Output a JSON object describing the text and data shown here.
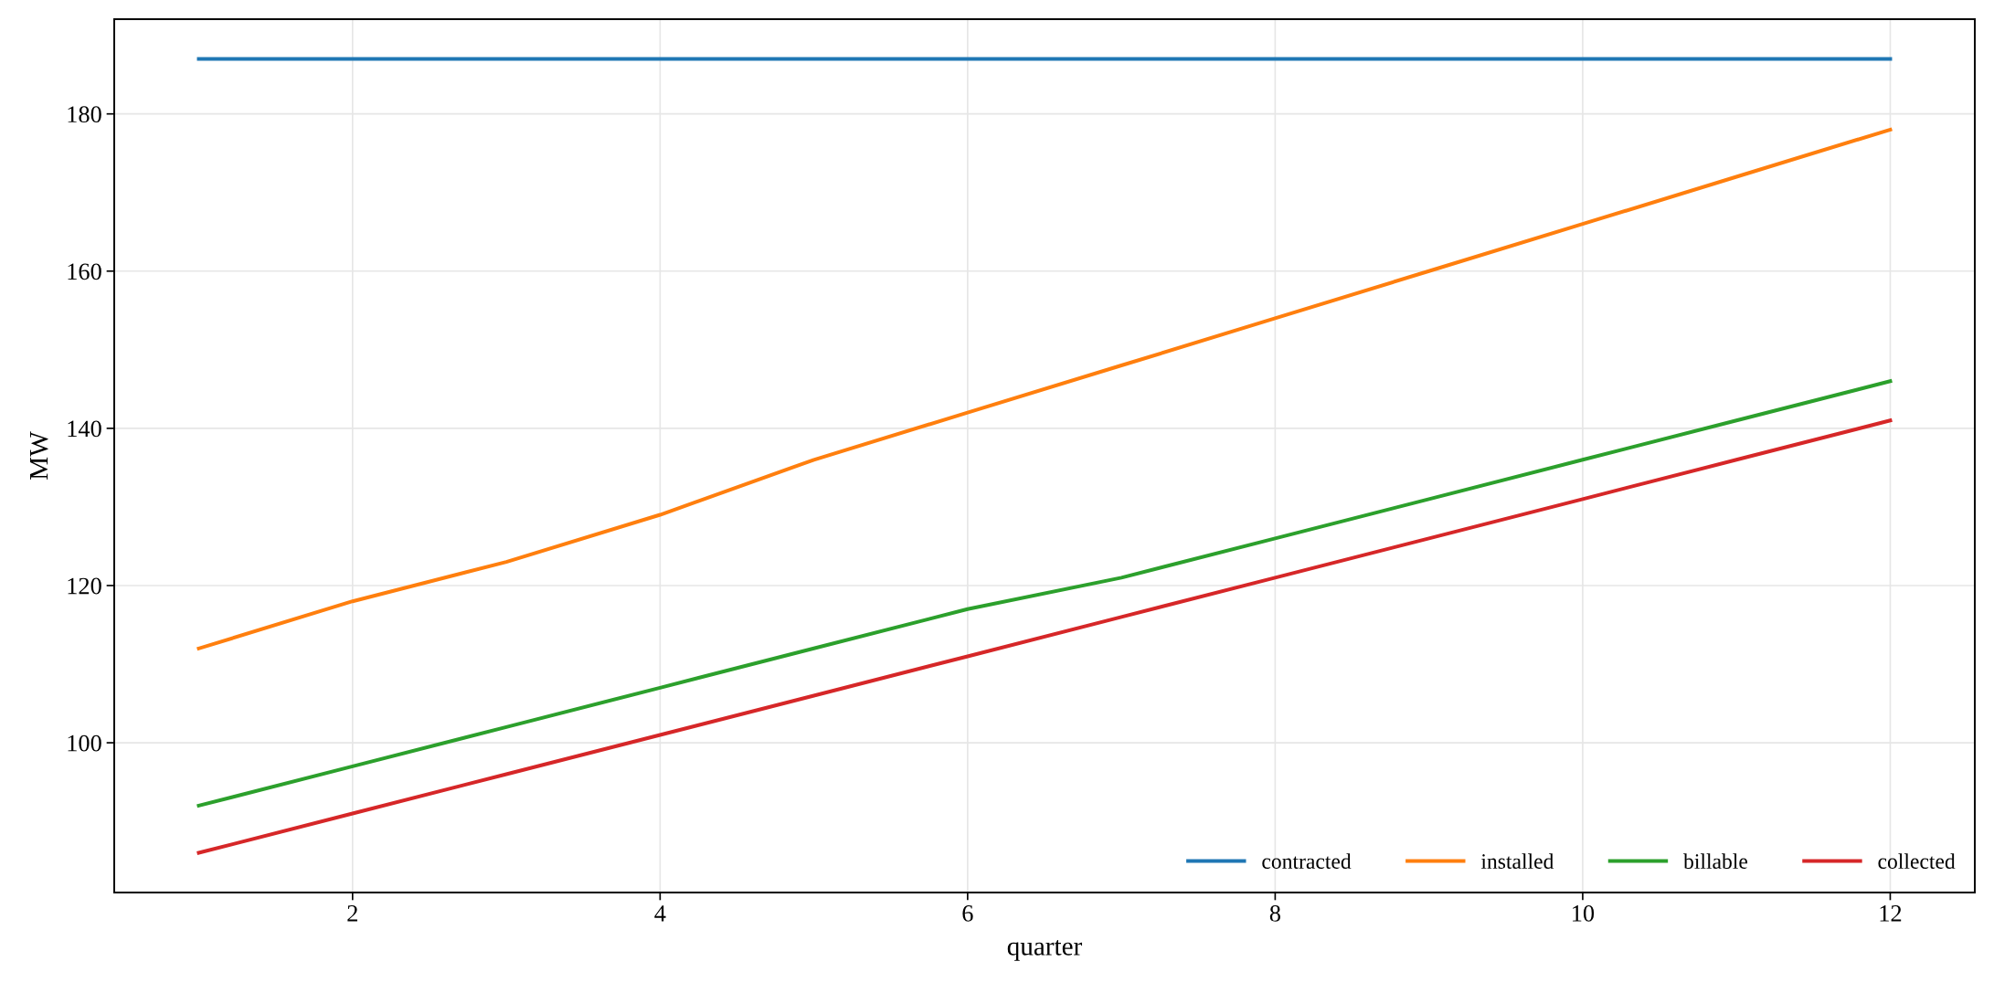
{
  "chart_data": {
    "type": "line",
    "xlabel": "quarter",
    "ylabel": "MW",
    "x": [
      1,
      2,
      3,
      4,
      5,
      6,
      7,
      8,
      9,
      10,
      11,
      12
    ],
    "series": [
      {
        "name": "contracted",
        "color": "#1f77b4",
        "values": [
          187,
          187,
          187,
          187,
          187,
          187,
          187,
          187,
          187,
          187,
          187,
          187
        ]
      },
      {
        "name": "installed",
        "color": "#ff7f0e",
        "values": [
          112,
          118,
          123,
          129,
          136,
          142,
          148,
          154,
          160,
          166,
          172,
          178
        ]
      },
      {
        "name": "billable",
        "color": "#2ca02c",
        "values": [
          92,
          97,
          102,
          107,
          112,
          117,
          121,
          126,
          131,
          136,
          141,
          146
        ]
      },
      {
        "name": "collected",
        "color": "#d62728",
        "values": [
          86,
          91,
          96,
          101,
          106,
          111,
          116,
          121,
          126,
          131,
          136,
          141
        ]
      }
    ],
    "xlim": [
      0.45,
      12.55
    ],
    "xticks": [
      2,
      4,
      6,
      8,
      10,
      12
    ],
    "ylim": [
      80.95,
      192.05
    ],
    "yticks": [
      100,
      120,
      140,
      160,
      180
    ],
    "grid": true,
    "legend": "bottom right",
    "marker": "none",
    "line_style": "solid"
  }
}
